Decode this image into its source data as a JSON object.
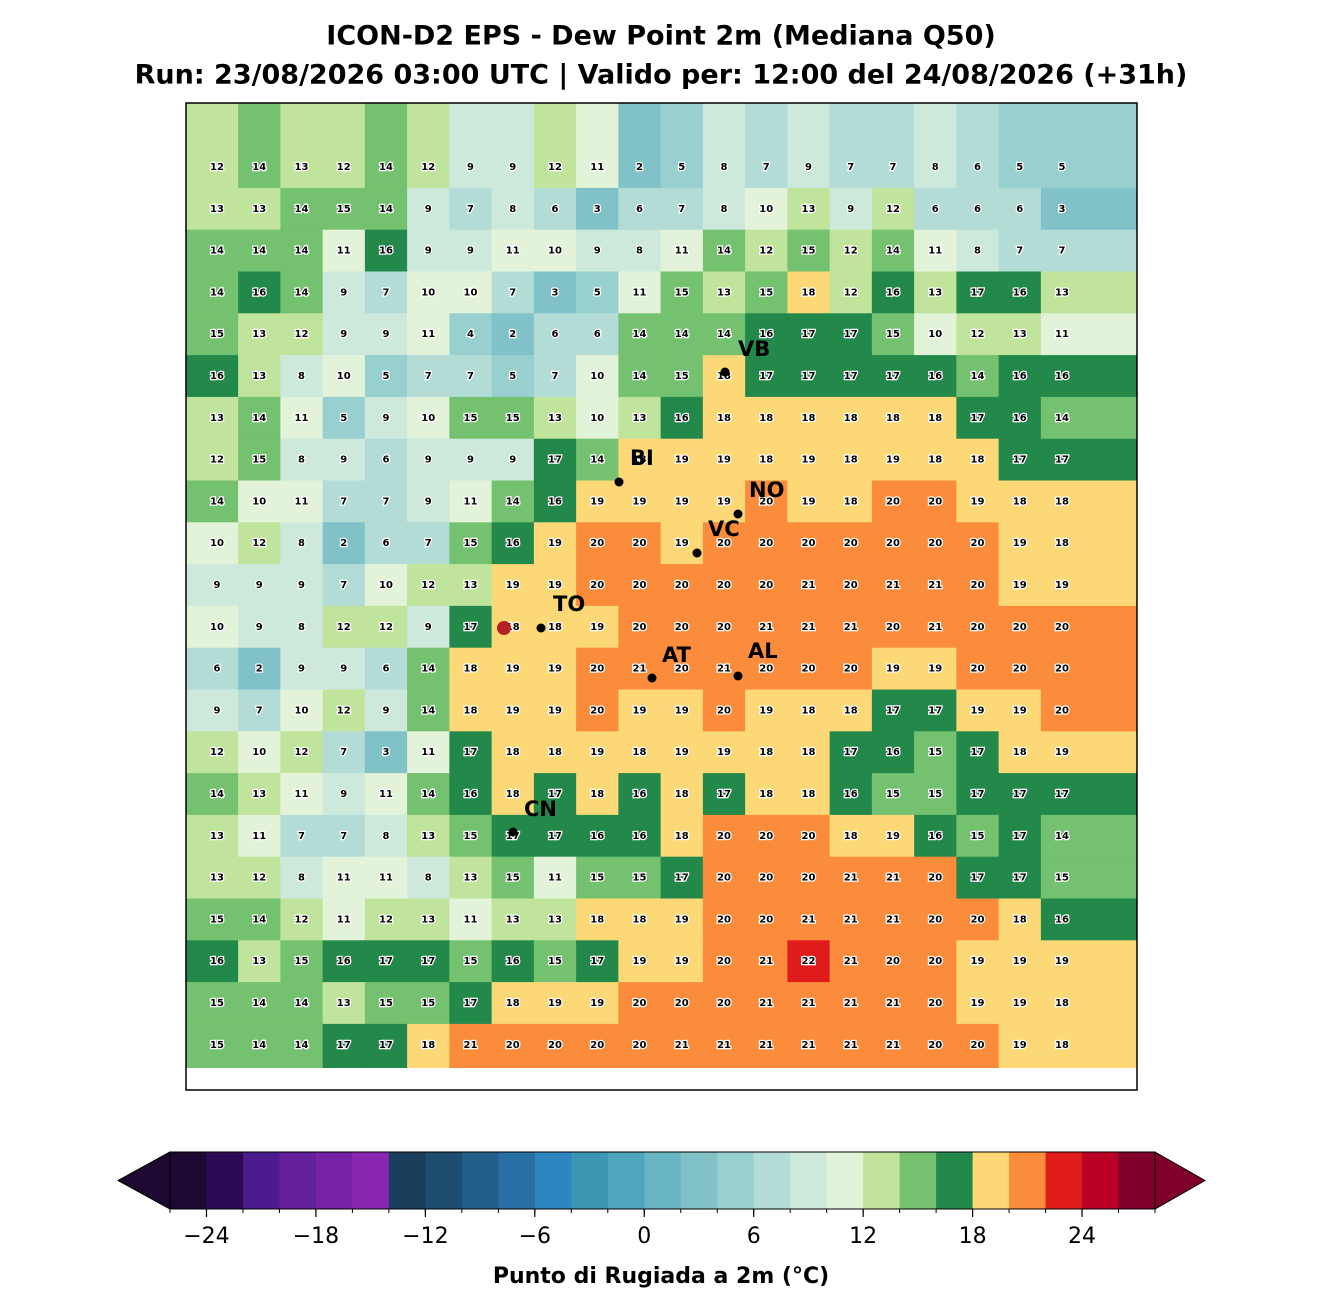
{
  "header": {
    "title": "ICON-D2 EPS - Dew Point 2m (Mediana Q50)",
    "subtitle": "Run: 23/08/2026 03:00 UTC | Valido per: 12:00 del 24/08/2026 (+31h)"
  },
  "map": {
    "values": [
      [
        12,
        14,
        13,
        12,
        14,
        12,
        9,
        9,
        12,
        11,
        2,
        5,
        8,
        7,
        9,
        7,
        7,
        8,
        6,
        5,
        5
      ],
      [
        13,
        13,
        14,
        15,
        14,
        9,
        7,
        8,
        6,
        3,
        6,
        7,
        8,
        10,
        13,
        9,
        12,
        6,
        6,
        6,
        3
      ],
      [
        14,
        14,
        14,
        11,
        16,
        9,
        9,
        11,
        10,
        9,
        8,
        11,
        14,
        12,
        15,
        12,
        14,
        11,
        8,
        7,
        7
      ],
      [
        14,
        16,
        14,
        9,
        7,
        10,
        10,
        7,
        3,
        5,
        11,
        15,
        13,
        15,
        18,
        12,
        16,
        13,
        17,
        16,
        13
      ],
      [
        15,
        13,
        12,
        9,
        9,
        11,
        4,
        2,
        6,
        6,
        14,
        14,
        14,
        16,
        17,
        17,
        15,
        10,
        12,
        13,
        11
      ],
      [
        16,
        13,
        8,
        10,
        5,
        7,
        7,
        5,
        7,
        10,
        14,
        15,
        18,
        17,
        17,
        17,
        17,
        16,
        14,
        16,
        16
      ],
      [
        13,
        14,
        11,
        5,
        9,
        10,
        15,
        15,
        13,
        10,
        13,
        16,
        18,
        18,
        18,
        18,
        18,
        18,
        17,
        16,
        14
      ],
      [
        12,
        15,
        8,
        9,
        6,
        9,
        9,
        9,
        17,
        14,
        18,
        19,
        19,
        18,
        19,
        18,
        19,
        18,
        18,
        17,
        17
      ],
      [
        14,
        10,
        11,
        7,
        7,
        9,
        11,
        14,
        16,
        19,
        19,
        19,
        19,
        20,
        19,
        18,
        20,
        20,
        19,
        18,
        18
      ],
      [
        10,
        12,
        8,
        2,
        6,
        7,
        15,
        16,
        19,
        20,
        20,
        19,
        20,
        20,
        20,
        20,
        20,
        20,
        20,
        19,
        18
      ],
      [
        9,
        9,
        9,
        7,
        10,
        12,
        13,
        19,
        19,
        20,
        20,
        20,
        20,
        20,
        21,
        20,
        21,
        21,
        20,
        19,
        19
      ],
      [
        10,
        9,
        8,
        12,
        12,
        9,
        17,
        18,
        18,
        19,
        20,
        20,
        20,
        21,
        21,
        21,
        20,
        21,
        20,
        20,
        20
      ],
      [
        6,
        2,
        9,
        9,
        6,
        14,
        18,
        19,
        19,
        20,
        21,
        20,
        21,
        20,
        20,
        20,
        19,
        19,
        20,
        20,
        20
      ],
      [
        9,
        7,
        10,
        12,
        9,
        14,
        18,
        19,
        19,
        20,
        19,
        19,
        20,
        19,
        18,
        18,
        17,
        17,
        19,
        19,
        20
      ],
      [
        12,
        10,
        12,
        7,
        3,
        11,
        17,
        18,
        18,
        19,
        18,
        19,
        19,
        18,
        18,
        17,
        16,
        15,
        17,
        18,
        19
      ],
      [
        14,
        13,
        11,
        9,
        11,
        14,
        16,
        18,
        17,
        18,
        16,
        18,
        17,
        18,
        18,
        16,
        15,
        15,
        17,
        17,
        17
      ],
      [
        13,
        11,
        7,
        7,
        8,
        13,
        15,
        17,
        17,
        16,
        16,
        18,
        20,
        20,
        20,
        18,
        19,
        16,
        15,
        17,
        14
      ],
      [
        13,
        12,
        8,
        11,
        11,
        8,
        13,
        15,
        11,
        15,
        15,
        17,
        20,
        20,
        20,
        21,
        21,
        20,
        17,
        17,
        15
      ],
      [
        15,
        14,
        12,
        11,
        12,
        13,
        11,
        13,
        13,
        18,
        18,
        19,
        20,
        20,
        21,
        21,
        21,
        20,
        20,
        18,
        16
      ],
      [
        16,
        13,
        15,
        16,
        17,
        17,
        15,
        16,
        15,
        17,
        19,
        19,
        20,
        21,
        22,
        21,
        20,
        20,
        19,
        19,
        19
      ],
      [
        15,
        14,
        14,
        13,
        15,
        15,
        17,
        18,
        19,
        19,
        20,
        20,
        20,
        21,
        21,
        21,
        21,
        20,
        19,
        19,
        18
      ],
      [
        15,
        14,
        14,
        17,
        17,
        18,
        21,
        20,
        20,
        20,
        20,
        21,
        21,
        21,
        21,
        21,
        21,
        20,
        20,
        19,
        18
      ]
    ],
    "cities": [
      "VB",
      "BI",
      "NO",
      "VC",
      "TO",
      "AT",
      "AL",
      "CN"
    ]
  },
  "colorbar": {
    "levels": [
      -26,
      -24,
      -22,
      -20,
      -18,
      -16,
      -14,
      -12,
      -10,
      -8,
      -6,
      -4,
      -2,
      0,
      2,
      4,
      6,
      8,
      10,
      12,
      14,
      16,
      18,
      20,
      22,
      24,
      26,
      28
    ],
    "colors": [
      "#1c0932",
      "#2e0a55",
      "#4b1a8c",
      "#63209a",
      "#7622a6",
      "#8a26b0",
      "#1b3d5c",
      "#1e4d70",
      "#235e8b",
      "#2870a3",
      "#2d86c0",
      "#3c96b3",
      "#4ea5bc",
      "#67b5c3",
      "#80c2c8",
      "#98cfcf",
      "#b3dcd6",
      "#cde9dc",
      "#e3f3da",
      "#c0e49b",
      "#74c16f",
      "#23894a",
      "#fdd877",
      "#fa8c3c",
      "#e01b1c",
      "#bb0026",
      "#7f0028"
    ],
    "ticks": [
      {
        "value": -24,
        "label": "−24"
      },
      {
        "value": -18,
        "label": "−18"
      },
      {
        "value": -12,
        "label": "−12"
      },
      {
        "value": -6,
        "label": "−6"
      },
      0,
      6,
      12,
      18,
      24
    ],
    "label": "Punto di Rugiada a 2m (°C)"
  }
}
